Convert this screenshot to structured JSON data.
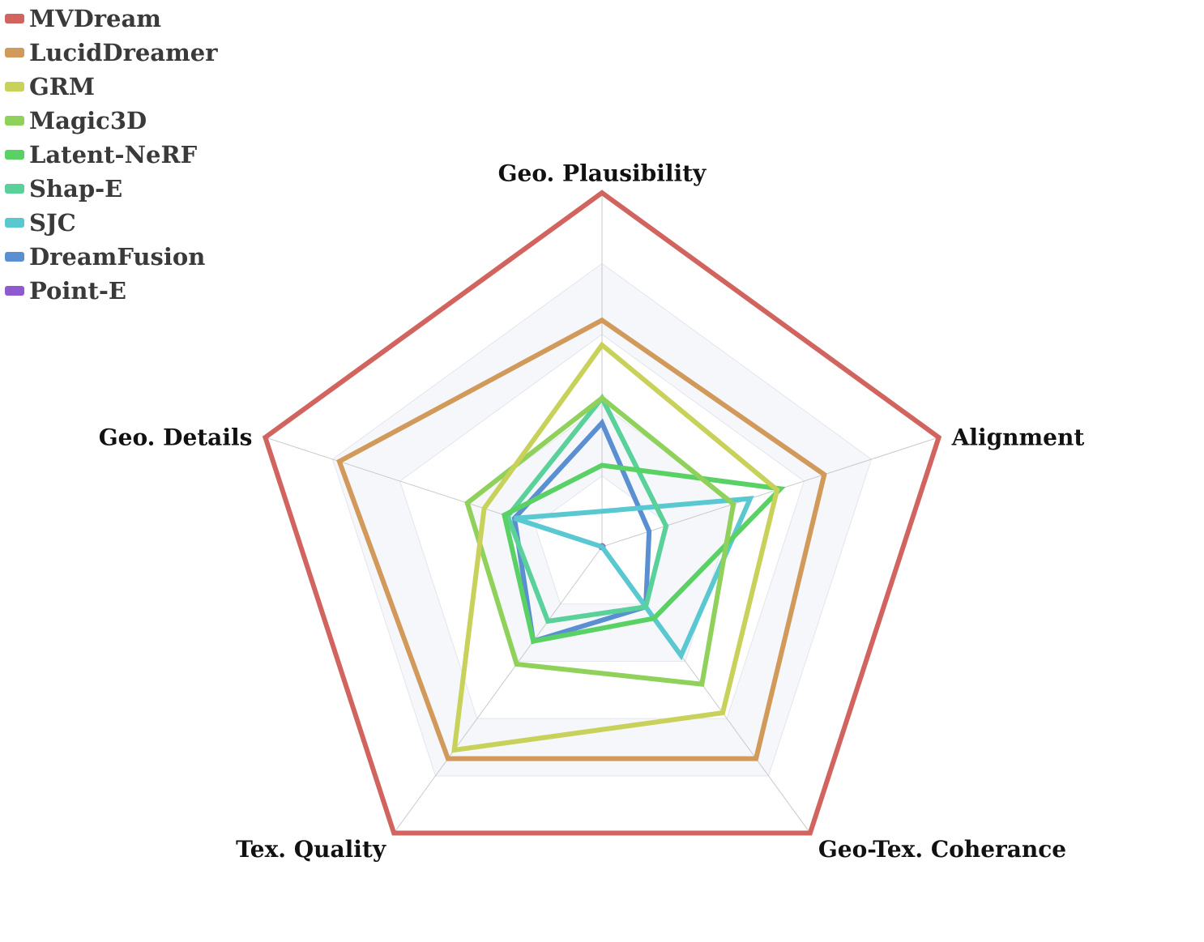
{
  "chart_data": {
    "type": "radar",
    "axes": [
      "Geo. Plausibility",
      "Alignment",
      "Geo-Tex. Coherance",
      "Tex. Quality",
      "Geo. Details"
    ],
    "range": [
      0,
      1
    ],
    "series": [
      {
        "name": "MVDream",
        "color": "#d1645f",
        "values": [
          1.0,
          1.0,
          1.0,
          1.0,
          1.0
        ]
      },
      {
        "name": "LucidDreamer",
        "color": "#d19a5a",
        "values": [
          0.64,
          0.66,
          0.74,
          0.74,
          0.78
        ]
      },
      {
        "name": "GRM",
        "color": "#c8d15a",
        "values": [
          0.57,
          0.52,
          0.58,
          0.71,
          0.35
        ]
      },
      {
        "name": "Magic3D",
        "color": "#8fd15a",
        "values": [
          0.42,
          0.39,
          0.48,
          0.41,
          0.4
        ]
      },
      {
        "name": "Latent-NeRF",
        "color": "#5ad165",
        "values": [
          0.23,
          0.53,
          0.25,
          0.33,
          0.29
        ]
      },
      {
        "name": "Shap-E",
        "color": "#5ad19a",
        "values": [
          0.42,
          0.19,
          0.21,
          0.26,
          0.28
        ]
      },
      {
        "name": "SJC",
        "color": "#5ac8d1",
        "values": [
          0.1,
          0.44,
          0.38,
          0.0,
          0.26
        ]
      },
      {
        "name": "DreamFusion",
        "color": "#5a8fd1",
        "values": [
          0.35,
          0.14,
          0.21,
          0.33,
          0.26
        ]
      },
      {
        "name": "Point-E",
        "color": "#8f5ad1",
        "values": [
          0.0,
          0.0,
          0.0,
          0.0,
          0.0
        ]
      }
    ],
    "grid": true,
    "legend_position": "top-left"
  }
}
